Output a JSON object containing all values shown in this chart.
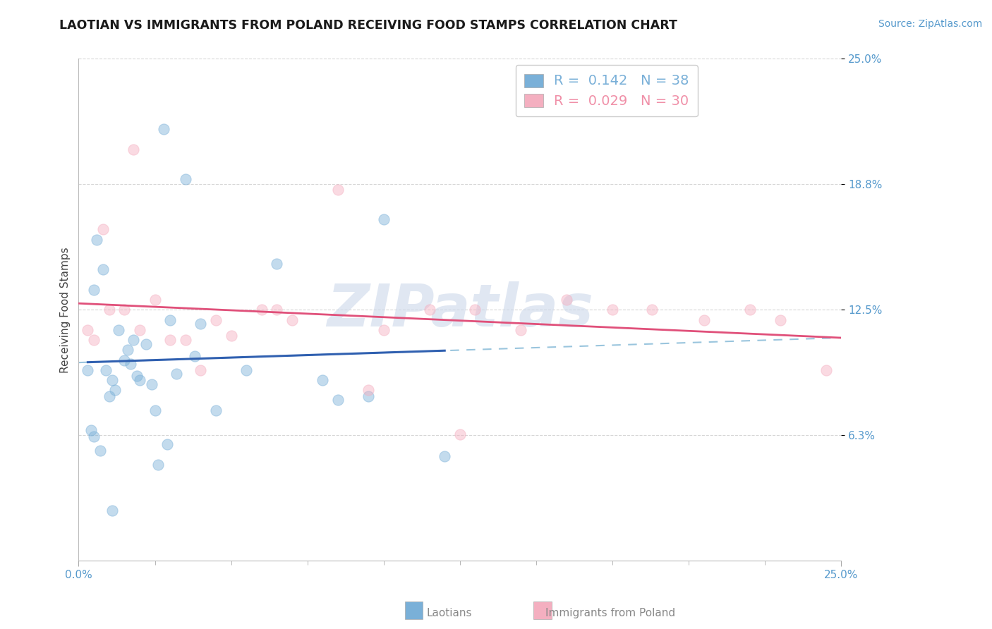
{
  "title": "LAOTIAN VS IMMIGRANTS FROM POLAND RECEIVING FOOD STAMPS CORRELATION CHART",
  "source_text": "Source: ZipAtlas.com",
  "ylabel": "Receiving Food Stamps",
  "watermark": "ZIPatlas",
  "xlim": [
    0.0,
    25.0
  ],
  "ylim": [
    0.0,
    25.0
  ],
  "y_tick_positions": [
    6.25,
    12.5,
    18.75,
    25.0
  ],
  "y_tick_labels": [
    "6.3%",
    "12.5%",
    "18.8%",
    "25.0%"
  ],
  "legend_entries": [
    {
      "label": "R =  0.142   N = 38",
      "color": "#7ab0d8"
    },
    {
      "label": "R =  0.029   N = 30",
      "color": "#f090a8"
    }
  ],
  "laotian_x": [
    0.3,
    0.4,
    0.5,
    0.5,
    0.6,
    0.7,
    0.8,
    0.9,
    1.0,
    1.1,
    1.2,
    1.3,
    1.5,
    1.6,
    1.7,
    1.8,
    1.9,
    2.0,
    2.2,
    2.4,
    2.5,
    2.6,
    2.8,
    2.9,
    3.0,
    3.2,
    3.5,
    3.8,
    4.0,
    4.5,
    5.5,
    6.5,
    8.0,
    8.5,
    9.5,
    10.0,
    12.0,
    1.1
  ],
  "laotian_y": [
    9.5,
    6.5,
    13.5,
    6.2,
    16.0,
    5.5,
    14.5,
    9.5,
    8.2,
    9.0,
    8.5,
    11.5,
    10.0,
    10.5,
    9.8,
    11.0,
    9.2,
    9.0,
    10.8,
    8.8,
    7.5,
    4.8,
    21.5,
    5.8,
    12.0,
    9.3,
    19.0,
    10.2,
    11.8,
    7.5,
    9.5,
    14.8,
    9.0,
    8.0,
    8.2,
    17.0,
    5.2,
    2.5
  ],
  "poland_x": [
    0.3,
    0.8,
    1.0,
    1.5,
    2.0,
    2.5,
    3.5,
    4.5,
    5.0,
    6.0,
    7.0,
    8.5,
    10.0,
    11.5,
    13.0,
    14.5,
    16.0,
    17.5,
    18.8,
    20.5,
    22.0,
    23.0,
    24.5,
    0.5,
    1.8,
    3.0,
    4.0,
    6.5,
    9.5,
    12.5
  ],
  "poland_y": [
    11.5,
    16.5,
    12.5,
    12.5,
    11.5,
    13.0,
    11.0,
    12.0,
    11.2,
    12.5,
    12.0,
    18.5,
    11.5,
    12.5,
    12.5,
    11.5,
    13.0,
    12.5,
    12.5,
    12.0,
    12.5,
    12.0,
    9.5,
    11.0,
    20.5,
    11.0,
    9.5,
    12.5,
    8.5,
    6.3
  ],
  "blue_scatter_color": "#7ab0d8",
  "pink_scatter_color": "#f4afc0",
  "blue_line_color": "#3060b0",
  "pink_line_color": "#e0507a",
  "blue_dash_color": "#88bbd8",
  "grid_color": "#cccccc",
  "title_color": "#1a1a1a",
  "axis_label_color": "#444444",
  "tick_label_color": "#5599cc",
  "background_color": "#ffffff",
  "watermark_color": "#ccd8ea",
  "title_fontsize": 12.5,
  "source_fontsize": 10,
  "ylabel_fontsize": 11,
  "watermark_fontsize": 60,
  "scatter_size": 120,
  "scatter_alpha": 0.45
}
